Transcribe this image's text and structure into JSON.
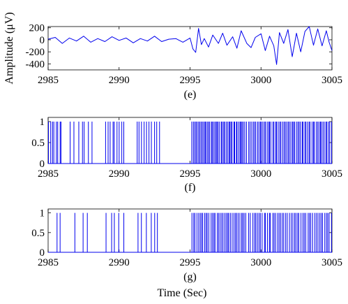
{
  "figure": {
    "xlabel": "Time (Sec)",
    "colors": {
      "series": "#0000ee",
      "axes": "#000000",
      "background": "#ffffff"
    }
  },
  "chart_data": [
    {
      "type": "line",
      "caption": "(e)",
      "ylabel": "Amplitude (μV)",
      "xlim": [
        2985,
        3005
      ],
      "ylim": [
        -500,
        220
      ],
      "xticks": [
        2985,
        2990,
        2995,
        3000,
        3005
      ],
      "xtick_labels": [
        "2985",
        "2990",
        "2995",
        "3000",
        "3005"
      ],
      "yticks": [
        200,
        0,
        -200,
        -400
      ],
      "ytick_labels": [
        "200",
        "0",
        "-200",
        "-400"
      ],
      "grid": false,
      "x": [
        2985.0,
        2985.5,
        2986.0,
        2986.5,
        2987.0,
        2987.5,
        2988.0,
        2988.5,
        2989.0,
        2989.5,
        2990.0,
        2990.5,
        2991.0,
        2991.5,
        2992.0,
        2992.5,
        2993.0,
        2993.5,
        2994.0,
        2994.5,
        2995.0,
        2995.2,
        2995.4,
        2995.6,
        2995.8,
        2996.0,
        2996.3,
        2996.6,
        2997.0,
        2997.3,
        2997.6,
        2998.0,
        2998.3,
        2998.6,
        2999.0,
        2999.3,
        2999.6,
        3000.0,
        3000.3,
        3000.6,
        3000.9,
        3001.1,
        3001.3,
        3001.6,
        3001.9,
        3002.2,
        3002.5,
        3002.8,
        3003.1,
        3003.4,
        3003.7,
        3004.0,
        3004.3,
        3004.6,
        3004.8,
        3005.0
      ],
      "y": [
        10,
        40,
        -60,
        30,
        -20,
        60,
        -40,
        20,
        -30,
        50,
        -10,
        30,
        -50,
        20,
        -20,
        60,
        -30,
        10,
        20,
        -40,
        30,
        -150,
        -210,
        190,
        -80,
        20,
        -120,
        80,
        -60,
        110,
        -90,
        50,
        -140,
        150,
        -60,
        -130,
        40,
        100,
        -180,
        60,
        -100,
        -410,
        120,
        -60,
        170,
        -280,
        110,
        -200,
        140,
        220,
        -90,
        180,
        -100,
        150,
        -40,
        -180
      ]
    },
    {
      "type": "line",
      "caption": "(f)",
      "xlim": [
        2985,
        3005
      ],
      "ylim": [
        0,
        1.1
      ],
      "xticks": [
        2985,
        2990,
        2995,
        3000,
        3005
      ],
      "xtick_labels": [
        "2985",
        "2990",
        "2995",
        "3000",
        "3005"
      ],
      "yticks": [
        1,
        0.5,
        0
      ],
      "ytick_labels": [
        "1",
        "0.5",
        "0"
      ],
      "grid": false,
      "spike_intervals": [
        [
          2985.0,
          2986.0,
          8
        ],
        [
          2986.5,
          2988.2,
          7
        ],
        [
          2989.0,
          2990.4,
          9
        ],
        [
          2991.2,
          2992.9,
          10
        ],
        [
          2995.1,
          2999.0,
          44
        ],
        [
          2999.1,
          3005.0,
          60
        ]
      ]
    },
    {
      "type": "line",
      "caption": "(g)",
      "xlim": [
        2985,
        3005
      ],
      "ylim": [
        0,
        1.1
      ],
      "xticks": [
        2985,
        2990,
        2995,
        3000,
        3005
      ],
      "xtick_labels": [
        "2985",
        "2990",
        "2995",
        "3000",
        "3005"
      ],
      "yticks": [
        1,
        0.5,
        0
      ],
      "ytick_labels": [
        "1",
        "0.5",
        "0"
      ],
      "grid": false,
      "spike_intervals": [
        [
          2985.5,
          2986.0,
          2
        ],
        [
          2986.5,
          2988.2,
          3
        ],
        [
          2989.0,
          2990.4,
          5
        ],
        [
          2991.2,
          2992.9,
          6
        ],
        [
          2995.1,
          2999.0,
          36
        ],
        [
          2999.1,
          3005.0,
          50
        ]
      ]
    }
  ]
}
